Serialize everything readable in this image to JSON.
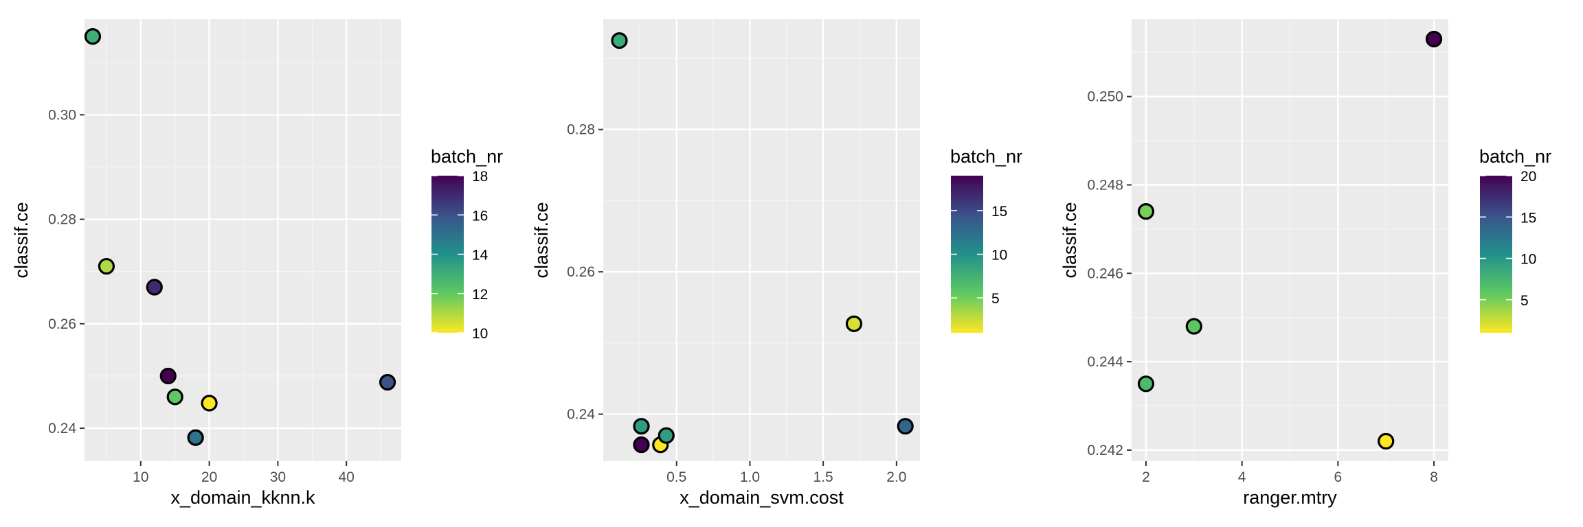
{
  "chart_data": [
    {
      "type": "scatter",
      "xlabel": "x_domain_kknn.k",
      "ylabel": "classif.ce",
      "xlim": [
        1.8,
        48.0
      ],
      "ylim": [
        0.2337,
        0.3183
      ],
      "x_ticks": [
        10,
        20,
        30,
        40
      ],
      "x_tick_labels": [
        "10",
        "20",
        "30",
        "40"
      ],
      "y_ticks": [
        0.24,
        0.26,
        0.28,
        0.3
      ],
      "y_tick_labels": [
        "0.24",
        "0.26",
        "0.28",
        "0.30"
      ],
      "grid": true,
      "legend": {
        "title": "batch_nr",
        "position": "right",
        "min": 10,
        "max": 18,
        "ticks": [
          10,
          12,
          14,
          16,
          18
        ],
        "tick_labels": [
          "10",
          "12",
          "14",
          "16",
          "18"
        ]
      },
      "points": [
        {
          "x": 3,
          "y": 0.315,
          "batch": 13
        },
        {
          "x": 5,
          "y": 0.271,
          "batch": 11
        },
        {
          "x": 12,
          "y": 0.267,
          "batch": 17
        },
        {
          "x": 14,
          "y": 0.25,
          "batch": 18
        },
        {
          "x": 15,
          "y": 0.246,
          "batch": 12
        },
        {
          "x": 20,
          "y": 0.2448,
          "batch": 10
        },
        {
          "x": 18,
          "y": 0.2382,
          "batch": 15
        },
        {
          "x": 46,
          "y": 0.2488,
          "batch": 16
        }
      ]
    },
    {
      "type": "scatter",
      "xlabel": "x_domain_svm.cost",
      "ylabel": "classif.ce",
      "xlim": [
        0.0,
        2.16
      ],
      "ylim": [
        0.2334,
        0.2955
      ],
      "x_ticks": [
        0.5,
        1.0,
        1.5,
        2.0
      ],
      "x_tick_labels": [
        "0.5",
        "1.0",
        "1.5",
        "2.0"
      ],
      "y_ticks": [
        0.24,
        0.26,
        0.28
      ],
      "y_tick_labels": [
        "0.24",
        "0.26",
        "0.28"
      ],
      "grid": true,
      "legend": {
        "title": "batch_nr",
        "position": "right",
        "min": 1,
        "max": 19,
        "ticks": [
          5,
          10,
          15
        ],
        "tick_labels": [
          "5",
          "10",
          "15"
        ]
      },
      "points": [
        {
          "x": 0.11,
          "y": 0.2925,
          "batch": 8
        },
        {
          "x": 0.26,
          "y": 0.2383,
          "batch": 9
        },
        {
          "x": 0.26,
          "y": 0.2357,
          "batch": 19
        },
        {
          "x": 0.39,
          "y": 0.2357,
          "batch": 1
        },
        {
          "x": 0.43,
          "y": 0.237,
          "batch": 9
        },
        {
          "x": 1.71,
          "y": 0.2527,
          "batch": 2
        },
        {
          "x": 2.06,
          "y": 0.2383,
          "batch": 13
        }
      ]
    },
    {
      "type": "scatter",
      "xlabel": "ranger.mtry",
      "ylabel": "classif.ce",
      "xlim": [
        1.7,
        8.3
      ],
      "ylim": [
        0.24175,
        0.25175
      ],
      "x_ticks": [
        2,
        4,
        6,
        8
      ],
      "x_tick_labels": [
        "2",
        "4",
        "6",
        "8"
      ],
      "y_ticks": [
        0.242,
        0.244,
        0.246,
        0.248,
        0.25
      ],
      "y_tick_labels": [
        "0.242",
        "0.244",
        "0.246",
        "0.248",
        "0.250"
      ],
      "grid": true,
      "legend": {
        "title": "batch_nr",
        "position": "right",
        "min": 1,
        "max": 20,
        "ticks": [
          5,
          10,
          15,
          20
        ],
        "tick_labels": [
          "5",
          "10",
          "15",
          "20"
        ]
      },
      "points": [
        {
          "x": 8,
          "y": 0.2513,
          "batch": 20
        },
        {
          "x": 2,
          "y": 0.2474,
          "batch": 5
        },
        {
          "x": 3,
          "y": 0.2448,
          "batch": 6
        },
        {
          "x": 2,
          "y": 0.2435,
          "batch": 7
        },
        {
          "x": 7,
          "y": 0.2422,
          "batch": 1
        }
      ]
    }
  ]
}
